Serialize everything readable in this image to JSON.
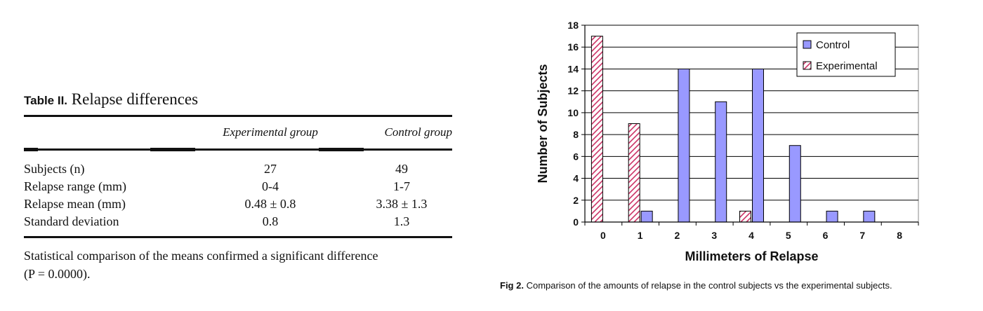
{
  "table": {
    "label": "Table II.",
    "title": "Relapse differences",
    "headers": [
      "",
      "Experimental group",
      "Control group"
    ],
    "rows": [
      [
        "Subjects (n)",
        "27",
        "49"
      ],
      [
        "Relapse range (mm)",
        "0-4",
        "1-7"
      ],
      [
        "Relapse mean (mm)",
        "0.48 ± 0.8",
        "3.38 ± 1.3"
      ],
      [
        "Standard deviation",
        "0.8",
        "1.3"
      ]
    ],
    "footnote_line1": "Statistical comparison of the means confirmed a significant difference",
    "footnote_line2": "(P = 0.0000)."
  },
  "figure": {
    "label": "Fig 2.",
    "caption": "Comparison of the amounts of relapse in the control subjects vs the experimental subjects."
  },
  "chart_data": {
    "type": "bar",
    "categories": [
      "0",
      "1",
      "2",
      "3",
      "4",
      "5",
      "6",
      "7",
      "8"
    ],
    "series": [
      {
        "name": "Control",
        "values": [
          0,
          1,
          14,
          11,
          14,
          7,
          1,
          1,
          0
        ],
        "color": "#9999ff",
        "pattern": "solid"
      },
      {
        "name": "Experimental",
        "values": [
          17,
          9,
          0,
          0,
          1,
          0,
          0,
          0,
          0
        ],
        "color": "#cc3366",
        "pattern": "diagonal-hatch"
      }
    ],
    "xlabel": "Millimeters of Relapse",
    "ylabel": "Number of Subjects",
    "ylim": [
      0,
      18
    ],
    "yticks": [
      "0",
      "2",
      "4",
      "6",
      "8",
      "10",
      "12",
      "14",
      "16",
      "18"
    ],
    "grid": true,
    "legend_position": "top-right"
  }
}
